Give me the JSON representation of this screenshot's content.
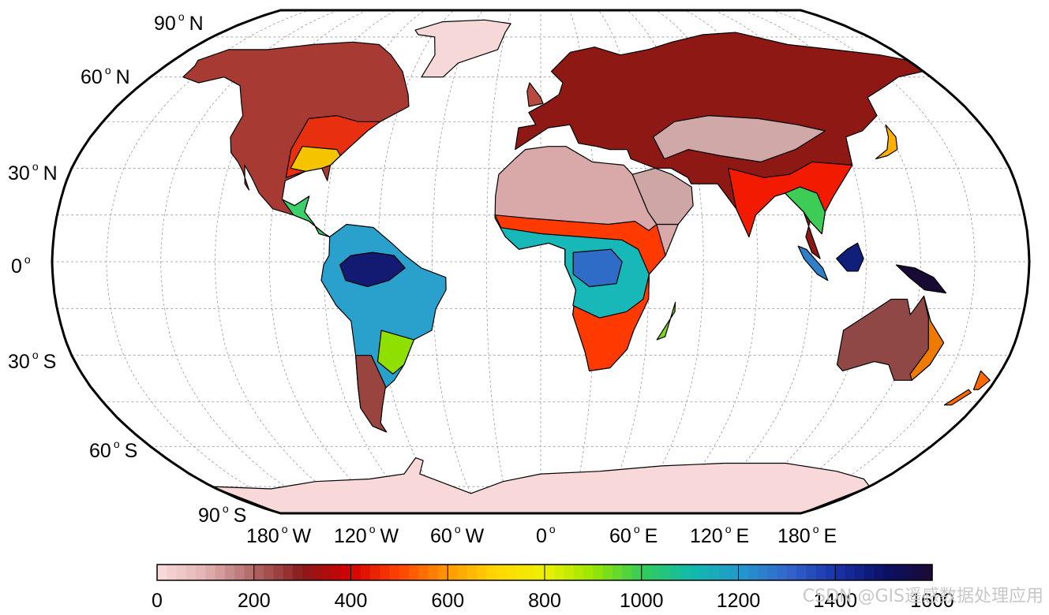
{
  "map": {
    "projection": "Robinson",
    "graticule_color": "#9a9a9a",
    "frame_color": "#000000",
    "latitude_labels": [
      {
        "value": "90",
        "hemi": "N"
      },
      {
        "value": "60",
        "hemi": "N"
      },
      {
        "value": "30",
        "hemi": "N"
      },
      {
        "value": "0",
        "hemi": ""
      },
      {
        "value": "30",
        "hemi": "S"
      },
      {
        "value": "60",
        "hemi": "S"
      },
      {
        "value": "90",
        "hemi": "S"
      }
    ],
    "longitude_labels": [
      {
        "value": "180",
        "hemi": "W"
      },
      {
        "value": "120",
        "hemi": "W"
      },
      {
        "value": "60",
        "hemi": "W"
      },
      {
        "value": "0",
        "hemi": ""
      },
      {
        "value": "60",
        "hemi": "E"
      },
      {
        "value": "120",
        "hemi": "E"
      },
      {
        "value": "180",
        "hemi": "E"
      }
    ],
    "degree_symbol": "o"
  },
  "colorbar": {
    "min": 0,
    "max": 1600,
    "tick_labels": [
      "0",
      "200",
      "400",
      "600",
      "800",
      "1000",
      "1200",
      "1400",
      "1600"
    ],
    "colors": [
      "#fadcdc",
      "#e2b2b2",
      "#b06666",
      "#8a1a1a",
      "#d40000",
      "#ff4400",
      "#ff9900",
      "#ffd800",
      "#eef000",
      "#99e600",
      "#33cc55",
      "#11bbaa",
      "#2299cc",
      "#3366cc",
      "#1a33aa",
      "#0a1166",
      "#1c0a33"
    ]
  },
  "watermark": {
    "text": "CSDN @GIS遥感数据处理应用"
  }
}
